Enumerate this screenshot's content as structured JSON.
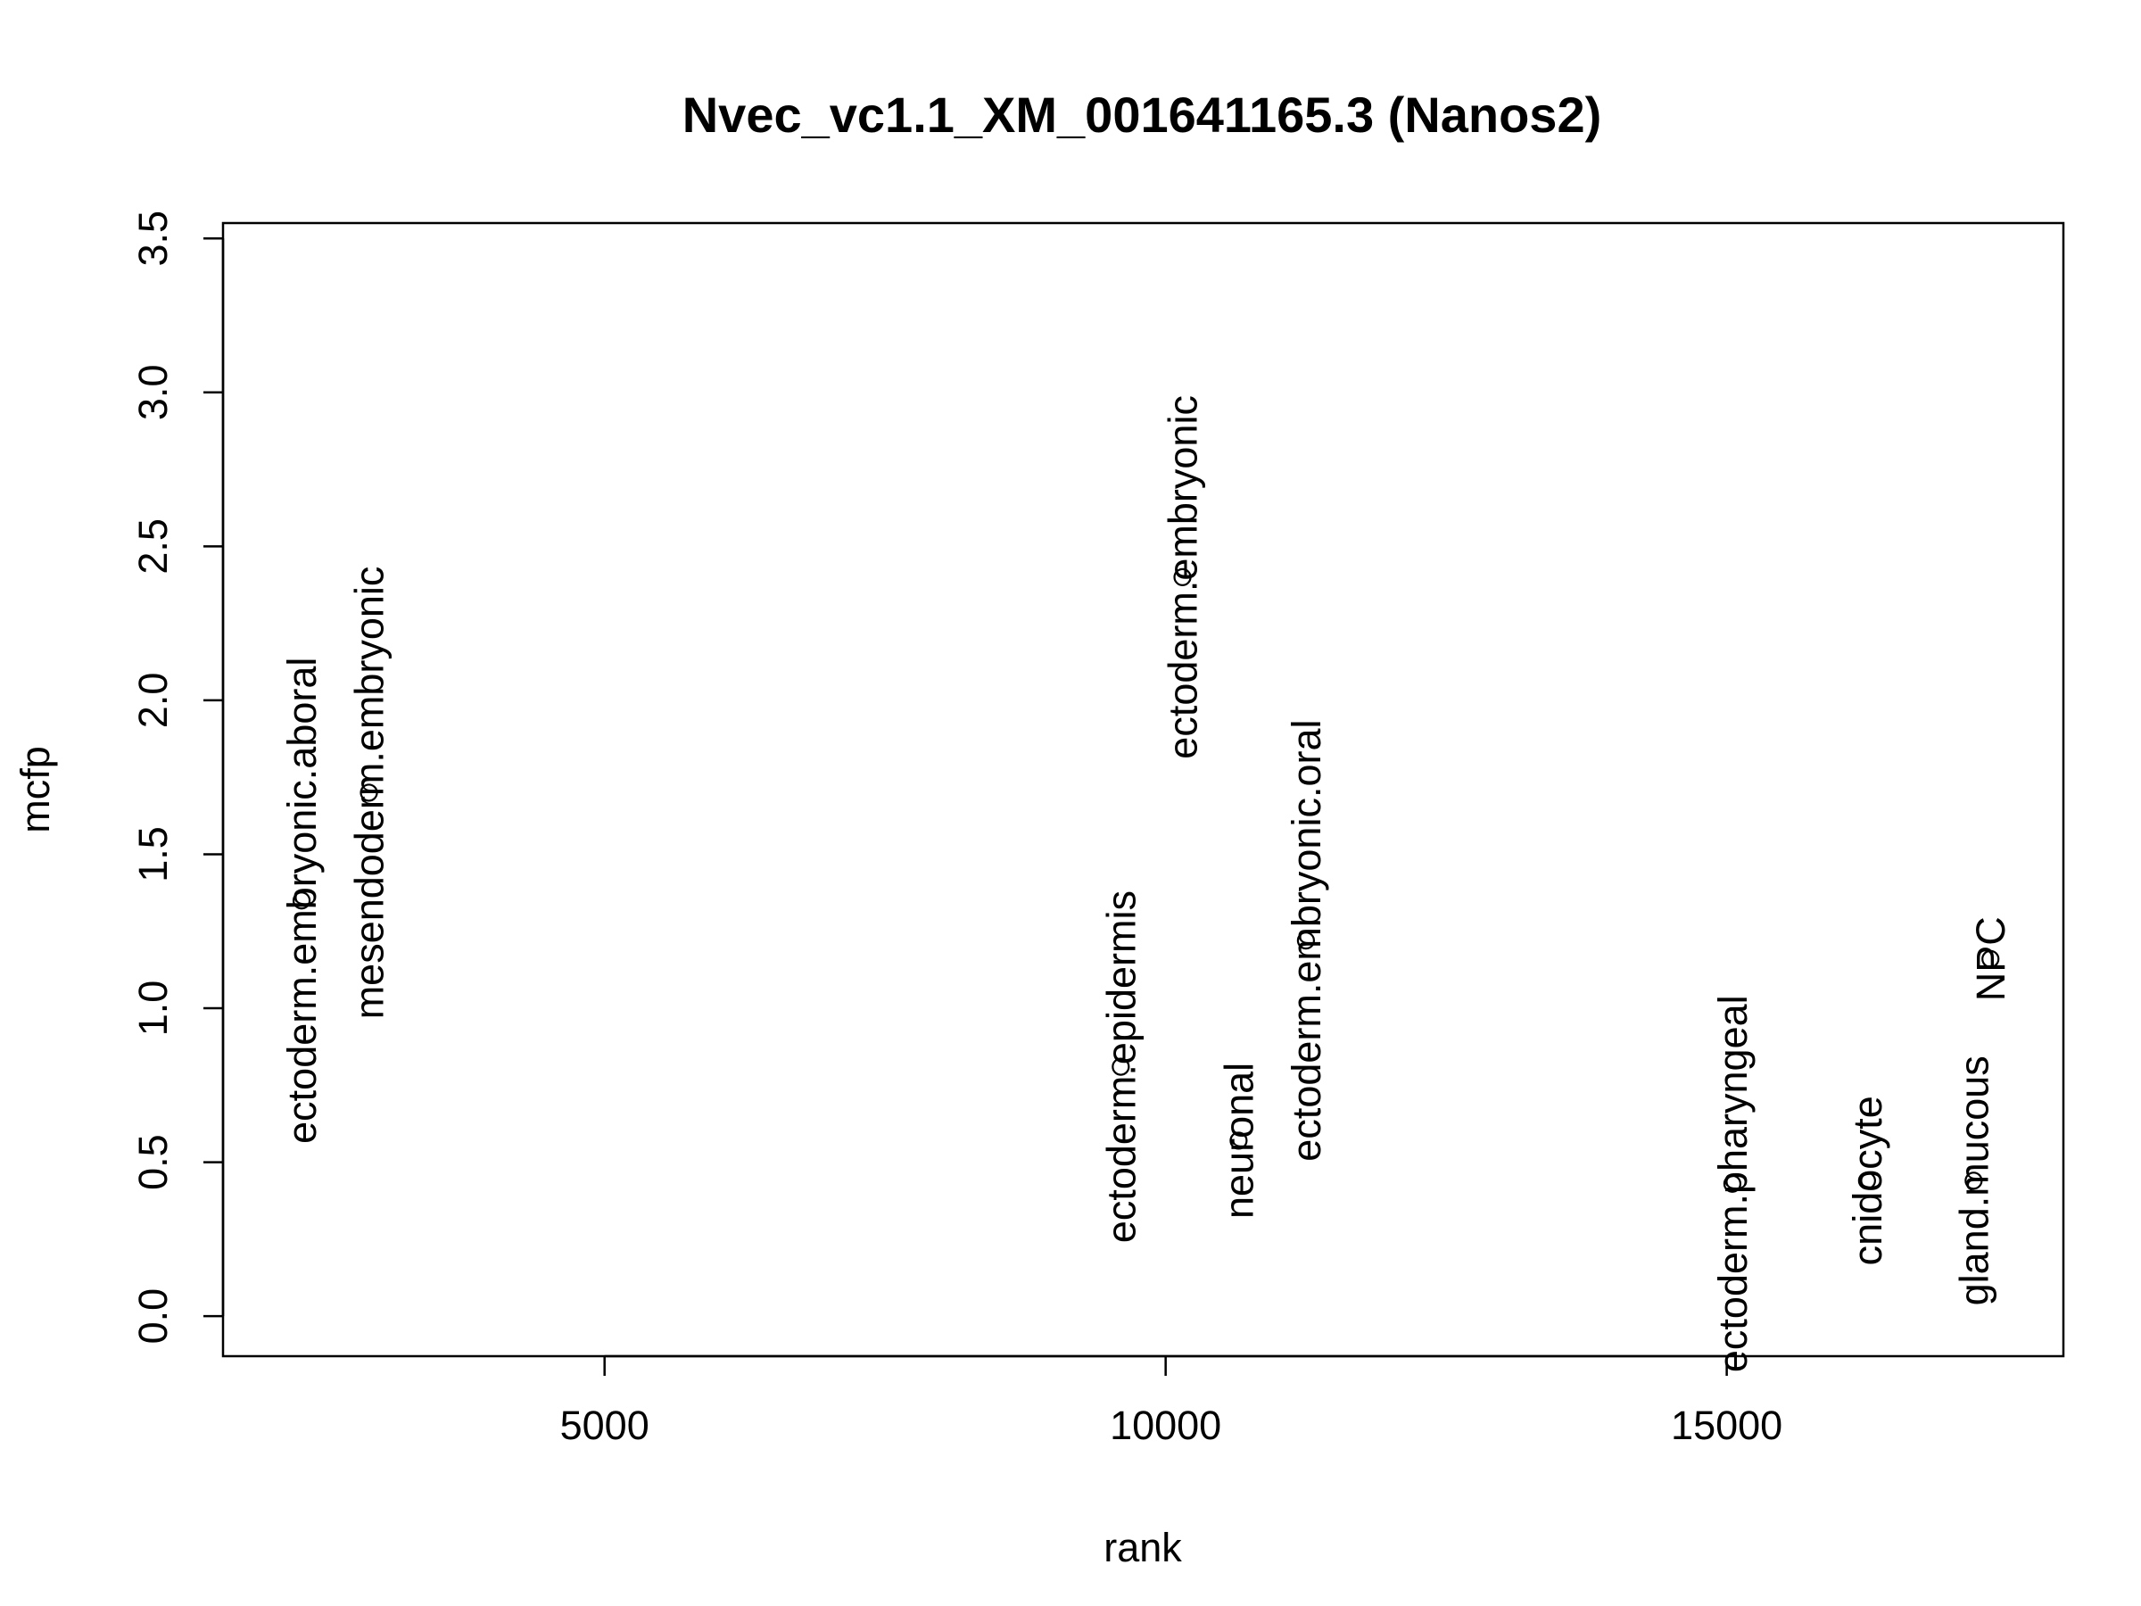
{
  "chart_data": {
    "type": "scatter",
    "title": "Nvec_vc1.1_XM_001641165.3 (Nanos2)",
    "xlabel": "rank",
    "ylabel": "mcfp",
    "xlim": [
      1600,
      18000
    ],
    "ylim": [
      -0.13,
      3.55
    ],
    "xticks": [
      5000,
      10000,
      15000
    ],
    "yticks": [
      0.0,
      0.5,
      1.0,
      1.5,
      2.0,
      2.5,
      3.0,
      3.5
    ],
    "xtick_labels": [
      "5000",
      "10000",
      "15000"
    ],
    "ytick_labels": [
      "0.0",
      "0.5",
      "1.0",
      "1.5",
      "2.0",
      "2.5",
      "3.0",
      "3.5"
    ],
    "grid": false,
    "points": [
      {
        "label": "ectoderm.embryonic.aboral",
        "x": 2300,
        "y": 1.35
      },
      {
        "label": "mesendoderm.embryonic",
        "x": 2900,
        "y": 1.7
      },
      {
        "label": "ectoderm.epidermis",
        "x": 9600,
        "y": 0.81
      },
      {
        "label": "ectoderm.embryonic",
        "x": 10150,
        "y": 2.4
      },
      {
        "label": "neuronal",
        "x": 10650,
        "y": 0.57
      },
      {
        "label": "ectoderm.embryonic.oral",
        "x": 11250,
        "y": 1.22
      },
      {
        "label": "ectoderm.pharyngeal",
        "x": 15050,
        "y": 0.43
      },
      {
        "label": "cnidocyte",
        "x": 16250,
        "y": 0.44
      },
      {
        "label": "gland.mucous",
        "x": 17200,
        "y": 0.44
      },
      {
        "label": "NPC",
        "x": 17350,
        "y": 1.16
      }
    ]
  }
}
